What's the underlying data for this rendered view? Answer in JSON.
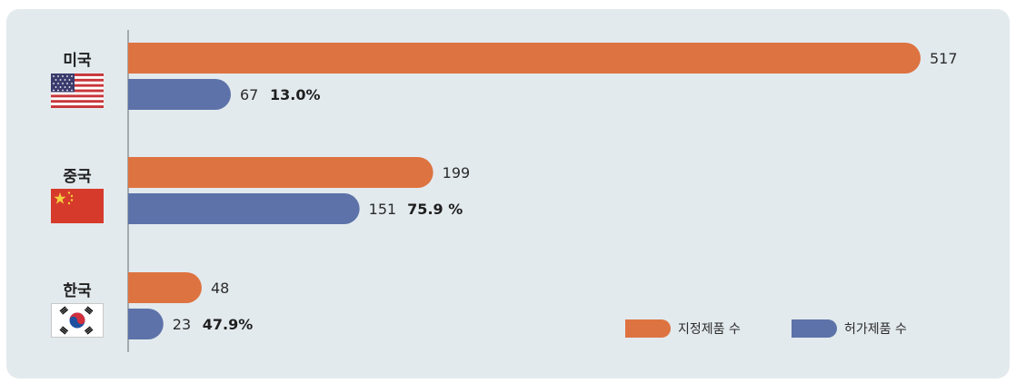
{
  "chart_data": {
    "type": "bar",
    "orientation": "horizontal",
    "categories": [
      "미국",
      "중국",
      "한국"
    ],
    "series": [
      {
        "name": "지정제품 수",
        "values": [
          517,
          199,
          48
        ],
        "color": "#dd7340"
      },
      {
        "name": "허가제품 수",
        "values": [
          67,
          151,
          23
        ],
        "color": "#5c72a8"
      }
    ],
    "ratio_labels": [
      "13.0%",
      "75.9 %",
      "47.9%"
    ],
    "legend": "bottom-right",
    "grid": false
  },
  "flags": [
    "us-flag-icon",
    "china-flag-icon",
    "korea-flag-icon"
  ],
  "colors": {
    "panel": "#e3eaee",
    "axis": "#8f969c"
  }
}
